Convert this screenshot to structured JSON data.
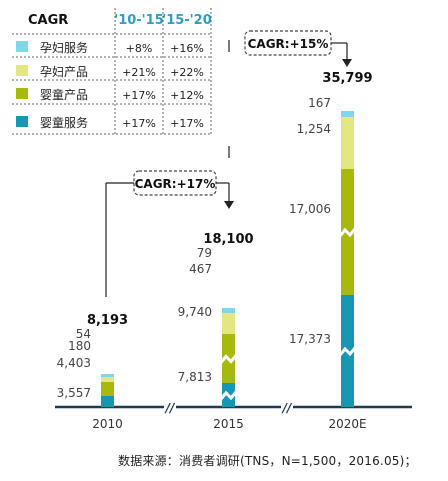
{
  "chart_data": {
    "type": "bar",
    "stacked": true,
    "categories": [
      "2010",
      "2015",
      "2020E"
    ],
    "totals": [
      "8,193",
      "18,100",
      "35,799"
    ],
    "series": [
      {
        "name": "婴童服务",
        "values": [
          3557,
          7813,
          17373
        ],
        "labels": [
          "3,557",
          "7,813",
          "17,373"
        ],
        "color": "#1797b4"
      },
      {
        "name": "婴童产品",
        "values": [
          4403,
          9740,
          17006
        ],
        "labels": [
          "4,403",
          "9,740",
          "17,006"
        ],
        "color": "#a8b90e"
      },
      {
        "name": "孕妇产品",
        "values": [
          180,
          467,
          1254
        ],
        "labels": [
          "180",
          "467",
          "1,254"
        ],
        "color": "#e2e781"
      },
      {
        "name": "孕妇服务",
        "values": [
          54,
          79,
          167
        ],
        "labels": [
          "54",
          "79",
          "167"
        ],
        "color": "#7fd6e5"
      }
    ],
    "cagr_callouts": [
      {
        "text": "CAGR:+17%",
        "between": [
          "2010",
          "2015"
        ]
      },
      {
        "text": "CAGR:+15%",
        "between": [
          "2015",
          "2020E"
        ]
      }
    ],
    "legend_table": {
      "header": [
        "CAGR",
        "'10-'15",
        "'15-'20"
      ],
      "rows": [
        {
          "name": "孕妇服务",
          "cagr_10_15": "+8%",
          "cagr_15_20": "+16%",
          "color": "#7fd6e5"
        },
        {
          "name": "孕妇产品",
          "cagr_10_15": "+21%",
          "cagr_15_20": "+22%",
          "color": "#e2e781"
        },
        {
          "name": "婴童产品",
          "cagr_10_15": "+17%",
          "cagr_15_20": "+12%",
          "color": "#a8b90e"
        },
        {
          "name": "婴童服务",
          "cagr_10_15": "+17%",
          "cagr_15_20": "+17%",
          "color": "#1797b4"
        }
      ],
      "placement": "top-left"
    },
    "axis_break_marks": [
      "//",
      "//"
    ],
    "source_note": "数据来源：消费者调研(TNS，N=1,500，2016.05)；",
    "header_color": "#2a9fc4",
    "axis_color": "#1f3a55"
  }
}
